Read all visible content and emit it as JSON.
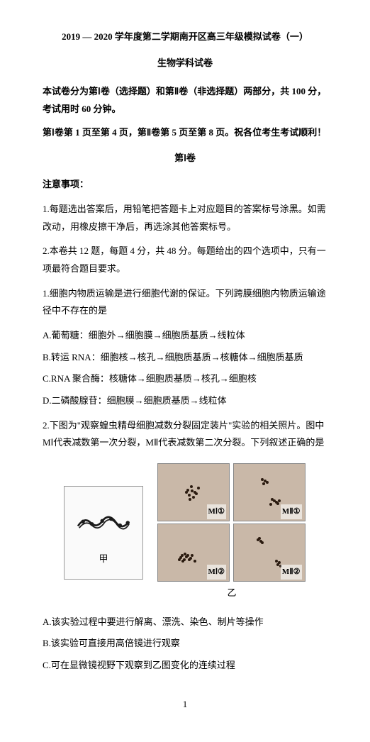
{
  "header": {
    "title": "2019 — 2020 学年度第二学期南开区高三年级模拟试卷（一）",
    "subject": "生物学科试卷"
  },
  "intro": {
    "line1": "本试卷分为第Ⅰ卷（选择题）和第Ⅱ卷（非选择题）两部分，共 100 分，考试用时 60 分钟。",
    "line2": "第Ⅰ卷第 1 页至第 4 页，第Ⅱ卷第 5 页至第 8 页。祝各位考生考试顺利！"
  },
  "part1": {
    "title": "第Ⅰ卷",
    "notes_header": "注意事项：",
    "note1": "1.每题选出答案后，用铅笔把答题卡上对应题目的答案标号涂黑。如需改动，用橡皮擦干净后，再选涂其他答案标号。",
    "note2": "2.本卷共 12 题，每题 4 分，共 48 分。每题给出的四个选项中，只有一项最符合题目要求。"
  },
  "q1": {
    "stem": "1.细胞内物质运输是进行细胞代谢的保证。下列跨膜细胞内物质运输途径中不存在的是",
    "a": "A.葡萄糖：细胞外→细胞膜→细胞质基质→线粒体",
    "b": "B.转运 RNA：细胞核→核孔→细胞质基质→核糖体→细胞质基质",
    "c": "C.RNA 聚合酶：核糖体→细胞质基质→核孔→细胞核",
    "d": "D.二磷酸腺苷：细胞膜→细胞质基质→线粒体"
  },
  "q2": {
    "stem": "2.下图为\"观察蝗虫精母细胞减数分裂固定装片\"实验的相关照片。图中 MⅠ代表减数第一次分裂，MⅡ代表减数第二次分裂。下列叙述正确的是",
    "a": "A.该实验过程中要进行解离、漂洗、染色、制片等操作",
    "b": "B.该实验可直接用高倍镜进行观察",
    "c": "C.可在显微镜视野下观察到乙图变化的连续过程"
  },
  "figures": {
    "left_caption": "甲",
    "grid_caption": "乙",
    "cells": [
      {
        "label": "MⅠ①",
        "dots": [
          [
            40,
            35
          ],
          [
            45,
            30
          ],
          [
            50,
            38
          ],
          [
            42,
            42
          ],
          [
            48,
            45
          ],
          [
            55,
            32
          ],
          [
            38,
            38
          ],
          [
            52,
            40
          ],
          [
            46,
            36
          ],
          [
            43,
            48
          ]
        ]
      },
      {
        "label": "MⅡ①",
        "dots": [
          [
            38,
            20
          ],
          [
            42,
            22
          ],
          [
            40,
            26
          ],
          [
            45,
            24
          ],
          [
            55,
            50
          ],
          [
            58,
            52
          ],
          [
            52,
            48
          ],
          [
            60,
            54
          ],
          [
            50,
            55
          ],
          [
            62,
            50
          ]
        ]
      },
      {
        "label": "MⅠ②",
        "dots": [
          [
            30,
            45
          ],
          [
            35,
            48
          ],
          [
            40,
            42
          ],
          [
            33,
            50
          ],
          [
            38,
            44
          ],
          [
            42,
            48
          ],
          [
            36,
            40
          ],
          [
            44,
            46
          ],
          [
            50,
            50
          ],
          [
            28,
            48
          ],
          [
            46,
            42
          ],
          [
            32,
            42
          ]
        ]
      },
      {
        "label": "MⅡ②",
        "dots": [
          [
            32,
            20
          ],
          [
            36,
            22
          ],
          [
            34,
            18
          ],
          [
            60,
            55
          ],
          [
            64,
            57
          ],
          [
            62,
            52
          ],
          [
            38,
            24
          ],
          [
            58,
            50
          ]
        ]
      }
    ],
    "cell_bg": "#c9b8a8",
    "dot_color": "#2a1a0f",
    "worm_stroke": "#1a1a1a"
  },
  "page_number": "1"
}
